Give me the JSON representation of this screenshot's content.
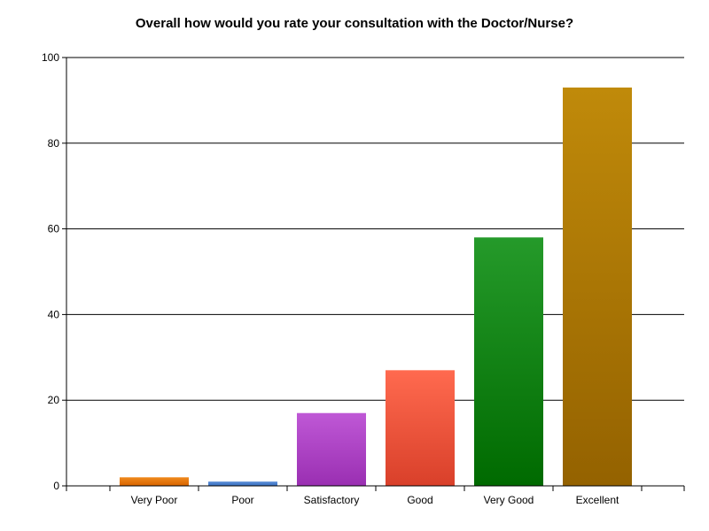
{
  "chart_data": {
    "type": "bar",
    "title": "Overall how would you rate your consultation with the Doctor/Nurse?",
    "xlabel": "",
    "ylabel": "",
    "categories": [
      "Very Poor",
      "Poor",
      "Satisfactory",
      "Good",
      "Very Good",
      "Excellent"
    ],
    "values": [
      2,
      1,
      17,
      27,
      58,
      93
    ],
    "ylim": [
      0,
      100
    ],
    "yticks": [
      0,
      20,
      40,
      60,
      80,
      100
    ],
    "grid": true,
    "legend": "none",
    "colors": [
      {
        "top": "#f08a1c",
        "bottom": "#d76300"
      },
      {
        "top": "#5b8fd8",
        "bottom": "#3a6fc0"
      },
      {
        "top": "#bf58d6",
        "bottom": "#9a2fb2"
      },
      {
        "top": "#ff6a4f",
        "bottom": "#d9402a"
      },
      {
        "top": "#259a2a",
        "bottom": "#006a00"
      },
      {
        "top": "#c08a0a",
        "bottom": "#946200"
      }
    ]
  }
}
